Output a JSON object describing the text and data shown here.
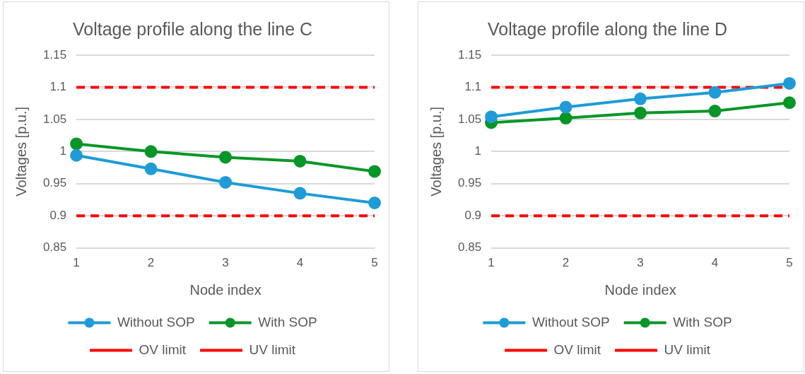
{
  "chart_data": [
    {
      "type": "line",
      "title": "Voltage profile along the line C",
      "xlabel": "Node index",
      "ylabel": "Voltages [p.u.]",
      "categories": [
        "1",
        "2",
        "3",
        "4",
        "5"
      ],
      "ylim": [
        0.85,
        1.15
      ],
      "yticks": [
        0.85,
        0.9,
        0.95,
        1,
        1.05,
        1.1,
        1.15
      ],
      "grid": "y",
      "legend": "bottom",
      "series": [
        {
          "name": "Without SOP",
          "color": "#1f9bd7",
          "values": [
            0.994,
            0.973,
            0.952,
            0.935,
            0.92
          ],
          "marker": "circle",
          "line_style": "solid"
        },
        {
          "name": "With SOP",
          "color": "#079627",
          "values": [
            1.012,
            1.0,
            0.991,
            0.985,
            0.969
          ],
          "marker": "circle",
          "line_style": "solid"
        },
        {
          "name": "OV limit",
          "color": "#ff0000",
          "values": [
            1.1,
            1.1,
            1.1,
            1.1,
            1.1
          ],
          "marker": "none",
          "line_style": "dashed"
        },
        {
          "name": "UV limit",
          "color": "#ff0000",
          "values": [
            0.9,
            0.9,
            0.9,
            0.9,
            0.9
          ],
          "marker": "none",
          "line_style": "dashed"
        }
      ]
    },
    {
      "type": "line",
      "title": "Voltage profile along the line D",
      "xlabel": "Node index",
      "ylabel": "Voltages [p.u.]",
      "categories": [
        "1",
        "2",
        "3",
        "4",
        "5"
      ],
      "ylim": [
        0.85,
        1.15
      ],
      "yticks": [
        0.85,
        0.9,
        0.95,
        1,
        1.05,
        1.1,
        1.15
      ],
      "grid": "y",
      "legend": "bottom",
      "series": [
        {
          "name": "Without SOP",
          "color": "#1f9bd7",
          "values": [
            1.054,
            1.069,
            1.082,
            1.092,
            1.106
          ],
          "marker": "circle",
          "line_style": "solid"
        },
        {
          "name": "With SOP",
          "color": "#079627",
          "values": [
            1.045,
            1.052,
            1.06,
            1.063,
            1.076
          ],
          "marker": "circle",
          "line_style": "solid"
        },
        {
          "name": "OV limit",
          "color": "#ff0000",
          "values": [
            1.1,
            1.1,
            1.1,
            1.1,
            1.1
          ],
          "marker": "none",
          "line_style": "dashed"
        },
        {
          "name": "UV limit",
          "color": "#ff0000",
          "values": [
            0.9,
            0.9,
            0.9,
            0.9,
            0.9
          ],
          "marker": "none",
          "line_style": "dashed"
        }
      ]
    }
  ]
}
